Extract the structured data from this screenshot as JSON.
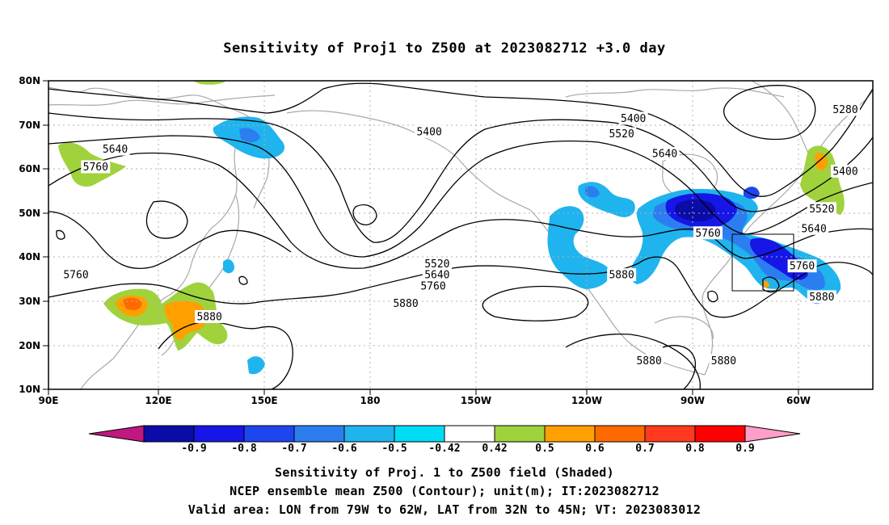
{
  "title": "Sensitivity of Proj1 to Z500 at 2023082712 +3.0 day",
  "lat_labels": [
    "80N",
    "70N",
    "60N",
    "50N",
    "40N",
    "30N",
    "20N",
    "10N"
  ],
  "lon_labels": [
    "90E",
    "120E",
    "150E",
    "180",
    "150W",
    "120W",
    "90W",
    "60W"
  ],
  "contour_labels": [
    {
      "text": "5280",
      "lon": -67,
      "lat": 73.5
    },
    {
      "text": "5400",
      "lon": -173,
      "lat": 68.5
    },
    {
      "text": "5400",
      "lon": -121,
      "lat": 71.5
    },
    {
      "text": "5400",
      "lon": -67,
      "lat": 59.5
    },
    {
      "text": "5520",
      "lon": -124,
      "lat": 68.0
    },
    {
      "text": "5520",
      "lon": -171,
      "lat": 38.5
    },
    {
      "text": "5520",
      "lon": -73,
      "lat": 51.0
    },
    {
      "text": "5640",
      "lon": 107,
      "lat": 64.5
    },
    {
      "text": "5640",
      "lon": -113,
      "lat": 63.5
    },
    {
      "text": "5640",
      "lon": -171,
      "lat": 36.0
    },
    {
      "text": "5640",
      "lon": -75,
      "lat": 46.5
    },
    {
      "text": "5760",
      "lon": 102,
      "lat": 60.5
    },
    {
      "text": "5760",
      "lon": 97,
      "lat": 36.0
    },
    {
      "text": "5760",
      "lon": -172,
      "lat": 33.5
    },
    {
      "text": "5760",
      "lon": -102,
      "lat": 45.5
    },
    {
      "text": "5760",
      "lon": -78,
      "lat": 38.0
    },
    {
      "text": "5880",
      "lon": -179,
      "lat": 29.5
    },
    {
      "text": "5880",
      "lon": -124,
      "lat": 36.0
    },
    {
      "text": "5880",
      "lon": 131,
      "lat": 26.5
    },
    {
      "text": "5880",
      "lon": -117,
      "lat": 16.5
    },
    {
      "text": "5880",
      "lon": -98,
      "lat": 16.5
    },
    {
      "text": "5880",
      "lon": -73,
      "lat": 31.0
    }
  ],
  "colorbar": {
    "labels": [
      "-0.9",
      "-0.8",
      "-0.7",
      "-0.6",
      "-0.5",
      "-0.42",
      "0.42",
      "0.5",
      "0.6",
      "0.7",
      "0.8",
      "0.9"
    ],
    "colors": [
      "#0b0ba8",
      "#1616e6",
      "#1e46f0",
      "#2c7ef0",
      "#1fb4ee",
      "#00dcf6",
      "#ffffff",
      "#a0d23c",
      "#ffa000",
      "#ff6a00",
      "#ff3a1e",
      "#ff0000"
    ],
    "low_end_color": "#c01880",
    "high_end_color": "#ff9ec8"
  },
  "captions": [
    "Sensitivity of Proj. 1 to Z500 field (Shaded)",
    "NCEP ensemble mean Z500 (Contour); unit(m); IT:2023082712",
    "Valid area: LON from 79W to 62W, LAT from 32N to 45N; VT: 2023083012"
  ]
}
